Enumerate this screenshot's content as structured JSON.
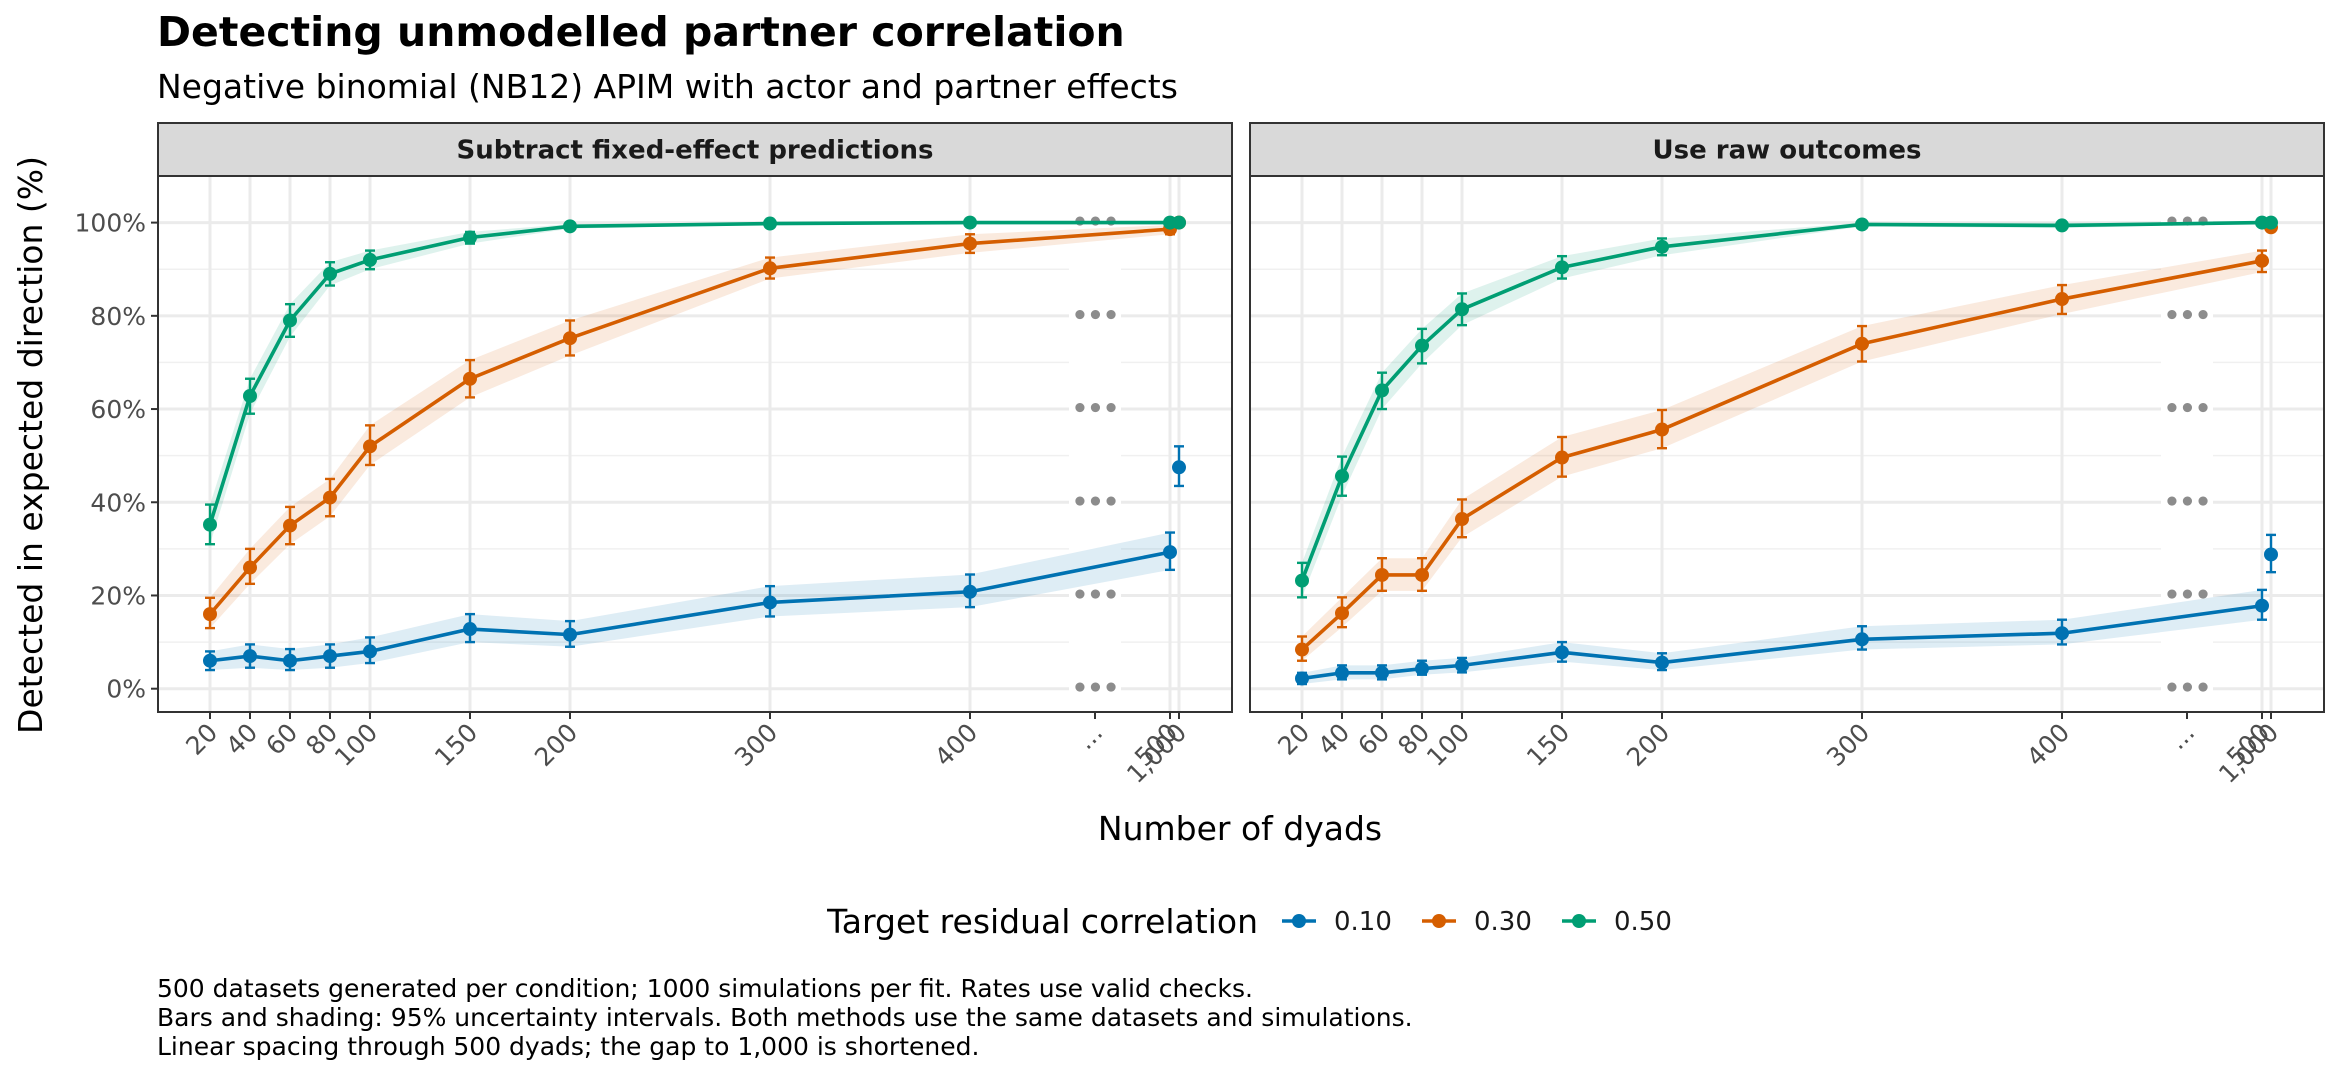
{
  "chart_data": {
    "type": "line",
    "title": "Detecting unmodelled partner correlation",
    "subtitle": "Negative binomial (NB12) APIM with actor and partner effects",
    "xlabel": "Number of dyads",
    "ylabel": "Detected in expected direction (%)",
    "x_tick_labels": [
      "20",
      "40",
      "60",
      "80",
      "100",
      "150",
      "200",
      "300",
      "400",
      "500",
      "...",
      "1,000"
    ],
    "y_tick_labels": [
      "0%",
      "20%",
      "40%",
      "60%",
      "80%",
      "100%"
    ],
    "ylim": [
      -5,
      110
    ],
    "x_break_label": "...",
    "break_marker": "•••",
    "legend": {
      "title": "Target residual correlation",
      "position": "bottom"
    },
    "series_colors": {
      "0.10": "#0072B2",
      "0.30": "#D55E00",
      "0.50": "#009E73"
    },
    "panels": [
      {
        "strip": "Subtract fixed-effect predictions",
        "series": [
          {
            "name": "0.10",
            "x": [
              20,
              40,
              60,
              80,
              100,
              150,
              200,
              300,
              400,
              500
            ],
            "y": [
              6,
              7,
              6,
              7,
              8,
              12.8,
              11.6,
              18.5,
              20.8,
              29.3
            ],
            "lo": [
              4,
              4.5,
              4,
              4.5,
              5.5,
              10,
              9,
              15.5,
              17.5,
              25.5
            ],
            "hi": [
              8,
              9.5,
              8.5,
              9.5,
              11,
              16,
              14.5,
              22,
              24.5,
              33.5
            ],
            "x_far": 1000,
            "y_far": 47.5,
            "lo_far": 43.5,
            "hi_far": 52
          },
          {
            "name": "0.30",
            "x": [
              20,
              40,
              60,
              80,
              100,
              150,
              200,
              300,
              400,
              500
            ],
            "y": [
              16,
              26,
              35,
              41,
              52,
              66.5,
              75.2,
              90.2,
              95.5,
              98.6
            ],
            "lo": [
              13,
              22.5,
              31,
              37,
              48,
              62.5,
              71.5,
              88,
              93.5,
              97.5
            ],
            "hi": [
              19.5,
              30,
              39,
              45,
              56.5,
              70.5,
              79,
              92.5,
              97.5,
              99.5
            ],
            "x_far": 1000,
            "y_far": 100,
            "lo_far": 99.5,
            "hi_far": 100
          },
          {
            "name": "0.50",
            "x": [
              20,
              40,
              60,
              80,
              100,
              150,
              200,
              300,
              400,
              500
            ],
            "y": [
              35.2,
              62.8,
              79,
              89,
              92,
              96.8,
              99.2,
              99.8,
              100,
              100
            ],
            "lo": [
              31,
              59,
              75.5,
              86.5,
              90,
              95.5,
              98.7,
              99.6,
              100,
              100
            ],
            "hi": [
              39.5,
              66.5,
              82.5,
              91.5,
              94,
              98,
              99.7,
              100,
              100,
              100
            ],
            "x_far": 1000,
            "y_far": 100,
            "lo_far": 100,
            "hi_far": 100
          }
        ]
      },
      {
        "strip": "Use raw outcomes",
        "series": [
          {
            "name": "0.10",
            "x": [
              20,
              40,
              60,
              80,
              100,
              150,
              200,
              300,
              400,
              500
            ],
            "y": [
              2.2,
              3.4,
              3.4,
              4.3,
              5,
              7.8,
              5.6,
              10.6,
              11.9,
              17.8
            ],
            "lo": [
              1,
              2,
              2,
              3,
              3.5,
              5.8,
              4,
              8.4,
              9.5,
              14.8
            ],
            "hi": [
              3.4,
              5,
              5,
              6,
              6.6,
              10,
              7.6,
              13.4,
              14.8,
              21.2
            ],
            "x_far": 1000,
            "y_far": 28.8,
            "lo_far": 25,
            "hi_far": 33
          },
          {
            "name": "0.30",
            "x": [
              20,
              40,
              60,
              80,
              100,
              150,
              200,
              300,
              400,
              500
            ],
            "y": [
              8.4,
              16.2,
              24.4,
              24.4,
              36.4,
              49.6,
              55.6,
              74,
              83.6,
              91.8
            ],
            "lo": [
              6,
              13.2,
              21,
              21,
              32.5,
              45.5,
              51.6,
              70.2,
              80.4,
              89.4
            ],
            "hi": [
              11.2,
              19.6,
              28,
              28,
              40.6,
              54,
              59.8,
              77.8,
              86.6,
              94
            ],
            "x_far": 1000,
            "y_far": 99,
            "lo_far": 98.3,
            "hi_far": 99.6
          },
          {
            "name": "0.50",
            "x": [
              20,
              40,
              60,
              80,
              100,
              150,
              200,
              300,
              400,
              500
            ],
            "y": [
              23.2,
              45.6,
              64,
              73.6,
              81.4,
              90.4,
              94.8,
              99.6,
              99.4,
              100
            ],
            "lo": [
              19.6,
              41.4,
              60,
              69.8,
              78,
              88,
              93,
              99.2,
              98.8,
              100
            ],
            "hi": [
              27,
              49.8,
              67.8,
              77.2,
              84.8,
              92.8,
              96.6,
              100,
              100,
              100
            ],
            "x_far": 1000,
            "y_far": 100,
            "lo_far": 99.2,
            "hi_far": 100
          }
        ]
      }
    ]
  },
  "captions": [
    "500 datasets generated per condition; 1000 simulations per fit. Rates use valid checks.",
    "Bars and shading: 95% uncertainty intervals. Both methods use the same datasets and simulations.",
    "Linear spacing through 500 dyads; the gap to 1,000 is shortened."
  ]
}
